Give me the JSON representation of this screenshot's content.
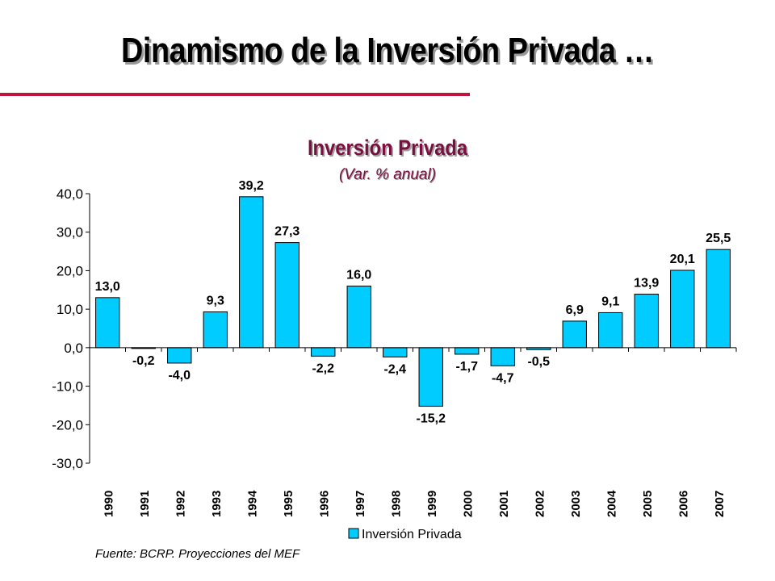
{
  "header": {
    "title": "Dinamismo de la Inversión Privada …"
  },
  "footer": {
    "source": "Fuente: BCRP. Proyecciones del MEF"
  },
  "colors": {
    "accent_rule": "#c0143c",
    "bar_fill": "#00ccff",
    "chart_title": "#7a1040"
  },
  "chart_data": {
    "type": "bar",
    "title": "Inversión Privada",
    "subtitle": "(Var. % anual)",
    "xlabel": "",
    "ylabel": "",
    "categories": [
      "1990",
      "1991",
      "1992",
      "1993",
      "1994",
      "1995",
      "1996",
      "1997",
      "1998",
      "1999",
      "2000",
      "2001",
      "2002",
      "2003",
      "2004",
      "2005",
      "2006",
      "2007"
    ],
    "series": [
      {
        "name": "Inversión Privada",
        "values": [
          13.0,
          -0.2,
          -4.0,
          9.3,
          39.2,
          27.3,
          -2.2,
          16.0,
          -2.4,
          -15.2,
          -1.7,
          -4.7,
          -0.5,
          6.9,
          9.1,
          13.9,
          20.1,
          25.5
        ],
        "labels": [
          "13,0",
          "-0,2",
          "-4,0",
          "9,3",
          "39,2",
          "27,3",
          "-2,2",
          "16,0",
          "-2,4",
          "-15,2",
          "-1,7",
          "-4,7",
          "-0,5",
          "6,9",
          "9,1",
          "13,9",
          "20,1",
          "25,5"
        ]
      }
    ],
    "y_ticks": [
      "40,0",
      "30,0",
      "20,0",
      "10,0",
      "0,0",
      "-10,0",
      "-20,0",
      "-30,0"
    ],
    "y_tick_values": [
      40,
      30,
      20,
      10,
      0,
      -10,
      -20,
      -30
    ],
    "ylim": [
      -30,
      40
    ],
    "grid": false,
    "legend": "bottom"
  }
}
